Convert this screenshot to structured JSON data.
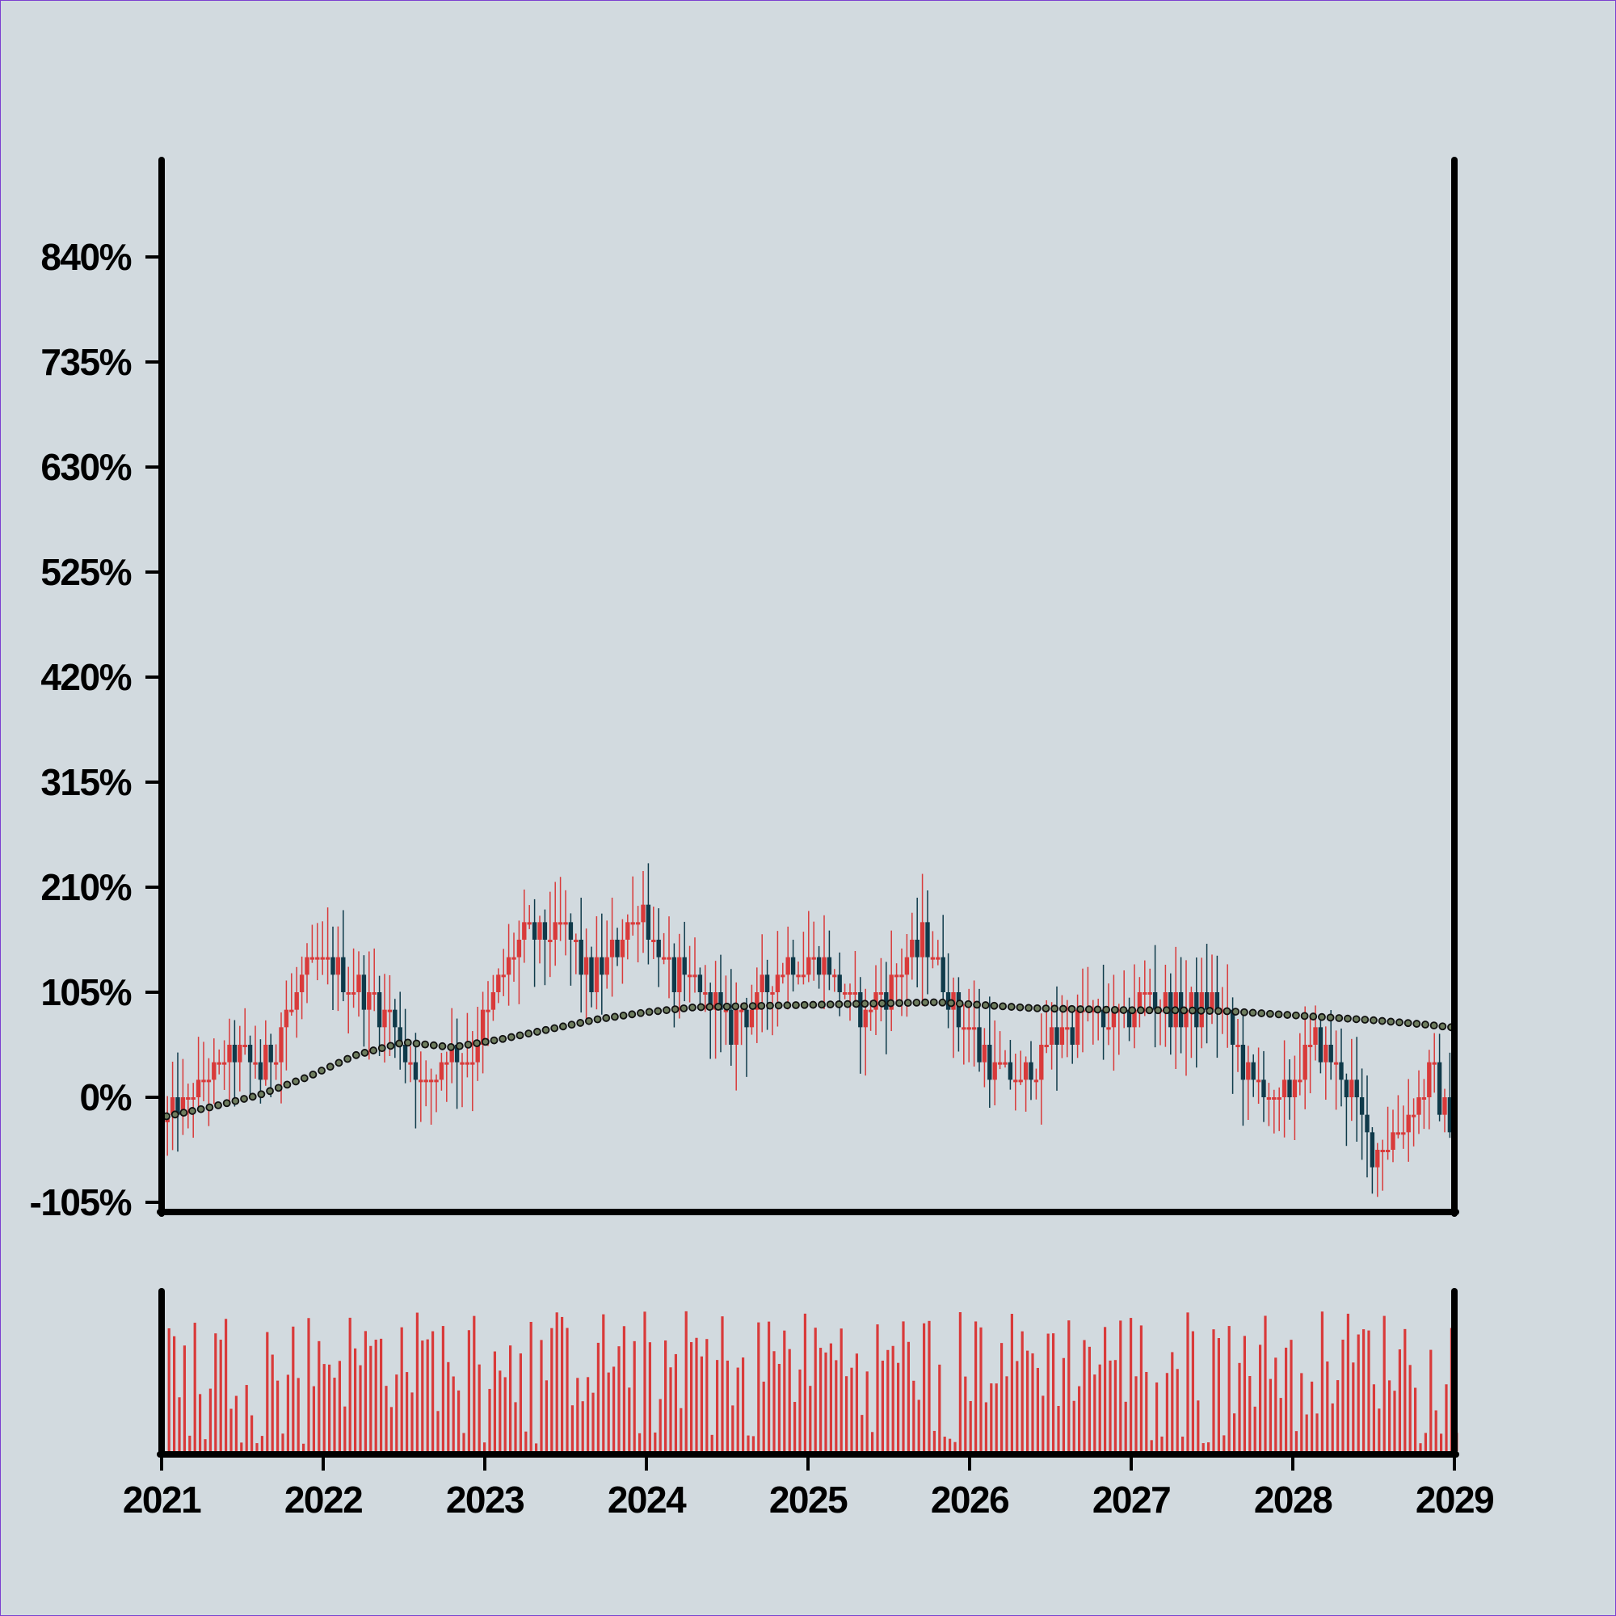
{
  "chart_data": {
    "type": "candlestick",
    "title": "",
    "xlabel": "",
    "ylabel": "",
    "y_format": "percent",
    "ylim": [
      -105,
      945
    ],
    "y_ticks": [
      -105,
      0,
      105,
      210,
      315,
      420,
      525,
      630,
      735,
      840
    ],
    "y_tick_labels": [
      "-105%",
      "0%",
      "105%",
      "210%",
      "315%",
      "420%",
      "525%",
      "630%",
      "735%",
      "840%"
    ],
    "xlim": [
      2021.0,
      2029.0
    ],
    "x_ticks": [
      2021,
      2022,
      2023,
      2024,
      2025,
      2026,
      2027,
      2028,
      2029
    ],
    "x_tick_labels": [
      "2021",
      "2022",
      "2023",
      "2024",
      "2025",
      "2026",
      "2027",
      "2028",
      "2029"
    ],
    "grid": false,
    "legend": "none",
    "colors": {
      "background": "#d2dadf",
      "up": "#d93a3a",
      "down": "#0f3a4a",
      "moving_average": "#6e7d5e",
      "volume": "#d93a3a",
      "axis": "#000000"
    },
    "close_series": {
      "x": [
        2021.0,
        2021.25,
        2021.45,
        2021.6,
        2021.85,
        2021.95,
        2022.2,
        2022.4,
        2022.58,
        2022.75,
        2022.9,
        2023.1,
        2023.25,
        2023.45,
        2023.65,
        2023.85,
        2023.95,
        2024.1,
        2024.3,
        2024.5,
        2024.7,
        2024.9,
        2025.1,
        2025.3,
        2025.5,
        2025.7,
        2025.9,
        2026.1,
        2026.3,
        2026.5,
        2026.7,
        2026.9,
        2027.1,
        2027.3,
        2027.5,
        2027.7,
        2027.9,
        2028.1,
        2028.3,
        2028.5,
        2028.7,
        2028.85,
        2028.98
      ],
      "y": [
        -25,
        15,
        50,
        25,
        115,
        140,
        110,
        80,
        10,
        40,
        40,
        130,
        165,
        165,
        120,
        165,
        190,
        125,
        110,
        70,
        100,
        140,
        130,
        80,
        110,
        160,
        80,
        35,
        10,
        65,
        80,
        75,
        100,
        80,
        100,
        20,
        -10,
        55,
        20,
        -60,
        -10,
        20,
        -40
      ]
    },
    "moving_average": {
      "x": [
        2021.0,
        2021.3,
        2021.6,
        2021.9,
        2022.2,
        2022.5,
        2022.8,
        2023.1,
        2023.4,
        2023.7,
        2024.0,
        2024.3,
        2024.6,
        2024.9,
        2025.2,
        2025.5,
        2025.8,
        2026.1,
        2026.4,
        2026.7,
        2027.0,
        2027.3,
        2027.6,
        2027.9,
        2028.2,
        2028.5,
        2028.8,
        2028.98
      ],
      "y": [
        -20,
        -10,
        2,
        20,
        42,
        55,
        50,
        58,
        68,
        78,
        85,
        90,
        91,
        92,
        93,
        94,
        95,
        92,
        89,
        88,
        87,
        87,
        86,
        83,
        80,
        77,
        73,
        70
      ]
    },
    "volume": {
      "note_scale": "relative (0–1), no axis printed",
      "count": 250,
      "range": [
        0.05,
        1.0
      ]
    }
  }
}
